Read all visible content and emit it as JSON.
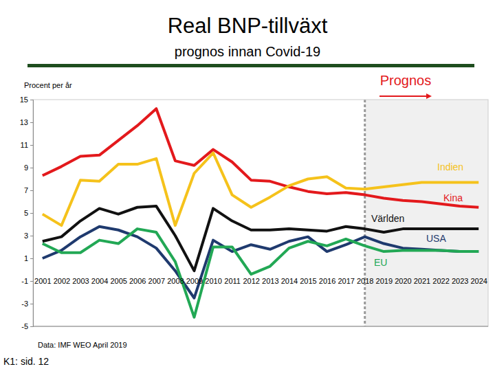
{
  "chart_data": {
    "type": "line",
    "title": "Real BNP-tillväxt",
    "subtitle": "prognos innan Covid-19",
    "y_label": "Procent per år",
    "source": "Data: IMF WEO April 2019",
    "footer": "K1: sid. 12",
    "x": [
      2001,
      2002,
      2003,
      2004,
      2005,
      2006,
      2007,
      2008,
      2009,
      2010,
      2011,
      2012,
      2013,
      2014,
      2015,
      2016,
      2017,
      2018,
      2019,
      2020,
      2021,
      2022,
      2023,
      2024
    ],
    "xlim": [
      2000.5,
      2024.5
    ],
    "xticks": [
      2001,
      2002,
      2003,
      2004,
      2005,
      2006,
      2007,
      2008,
      2009,
      2010,
      2011,
      2012,
      2013,
      2014,
      2015,
      2016,
      2017,
      2018,
      2019,
      2020,
      2021,
      2022,
      2023,
      2024
    ],
    "ylim": [
      -5,
      15
    ],
    "yticks": [
      -5,
      -3,
      -1,
      1,
      3,
      5,
      7,
      9,
      11,
      13,
      15
    ],
    "grid": false,
    "annotations": [
      {
        "text": "Prognos",
        "x": 2018
      }
    ],
    "series": [
      {
        "name": "Kina",
        "color": "#e3191c",
        "values": [
          8.3,
          9.1,
          10.0,
          10.1,
          11.4,
          12.7,
          14.2,
          9.6,
          9.2,
          10.6,
          9.5,
          7.9,
          7.8,
          7.3,
          6.9,
          6.7,
          6.8,
          6.6,
          6.3,
          6.1,
          6.0,
          5.8,
          5.6,
          5.5
        ]
      },
      {
        "name": "Indien",
        "color": "#f5c21b",
        "values": [
          4.9,
          3.9,
          7.9,
          7.8,
          9.3,
          9.3,
          9.8,
          3.9,
          8.5,
          10.3,
          6.6,
          5.5,
          6.4,
          7.4,
          8.0,
          8.2,
          7.2,
          7.1,
          7.3,
          7.5,
          7.7,
          7.7,
          7.7,
          7.7
        ]
      },
      {
        "name": "Världen",
        "color": "#111111",
        "values": [
          2.5,
          2.9,
          4.3,
          5.4,
          4.9,
          5.5,
          5.6,
          3.0,
          -0.1,
          5.4,
          4.3,
          3.5,
          3.5,
          3.6,
          3.5,
          3.4,
          3.8,
          3.6,
          3.3,
          3.6,
          3.6,
          3.6,
          3.6,
          3.6
        ]
      },
      {
        "name": "USA",
        "color": "#1f3a6e",
        "values": [
          1.0,
          1.7,
          2.9,
          3.8,
          3.5,
          2.9,
          1.9,
          -0.1,
          -2.5,
          2.6,
          1.6,
          2.2,
          1.8,
          2.5,
          2.9,
          1.6,
          2.2,
          2.9,
          2.3,
          1.9,
          1.8,
          1.7,
          1.6,
          1.6
        ]
      },
      {
        "name": "EU",
        "color": "#22a855",
        "values": [
          2.3,
          1.5,
          1.5,
          2.6,
          2.3,
          3.6,
          3.3,
          0.7,
          -4.2,
          2.0,
          2.0,
          -0.4,
          0.3,
          1.9,
          2.5,
          2.1,
          2.7,
          2.1,
          1.6,
          1.7,
          1.7,
          1.7,
          1.6,
          1.6
        ]
      }
    ]
  }
}
